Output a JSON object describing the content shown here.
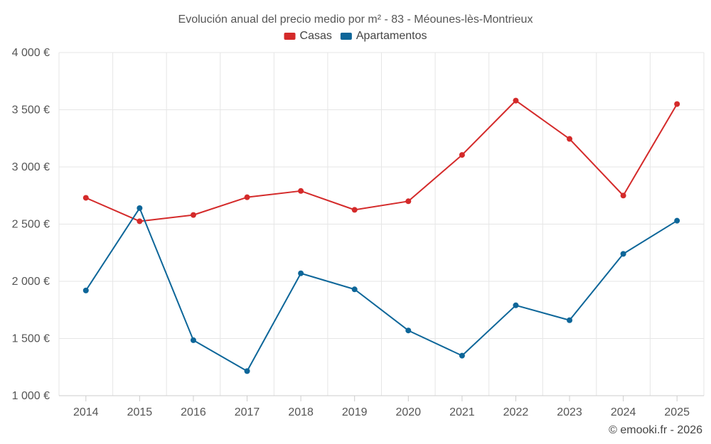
{
  "chart_data": {
    "type": "line",
    "title": "Evolución anual del precio medio por m² - 83 - Méounes-lès-Montrieux",
    "categories": [
      "2014",
      "2015",
      "2016",
      "2017",
      "2018",
      "2019",
      "2020",
      "2021",
      "2022",
      "2023",
      "2024",
      "2025"
    ],
    "series": [
      {
        "name": "Casas",
        "color": "#d42a2a",
        "values": [
          2730,
          2525,
          2580,
          2735,
          2790,
          2625,
          2700,
          3105,
          3580,
          3245,
          2750,
          3550
        ]
      },
      {
        "name": "Apartamentos",
        "color": "#0d6699",
        "values": [
          1920,
          2640,
          1485,
          1215,
          2070,
          1930,
          1570,
          1350,
          1790,
          1660,
          2240,
          2530
        ]
      }
    ],
    "ylim": [
      1000,
      4000
    ],
    "yticks": [
      {
        "value": 1000,
        "label": "1 000 €"
      },
      {
        "value": 1500,
        "label": "1 500 €"
      },
      {
        "value": 2000,
        "label": "2 000 €"
      },
      {
        "value": 2500,
        "label": "2 500 €"
      },
      {
        "value": 3000,
        "label": "3 000 €"
      },
      {
        "value": 3500,
        "label": "3 500 €"
      },
      {
        "value": 4000,
        "label": "4 000 €"
      }
    ],
    "xlabel": "",
    "ylabel": "",
    "grid": true,
    "legend": "top-center"
  },
  "credit": "© emooki.fr - 2026"
}
